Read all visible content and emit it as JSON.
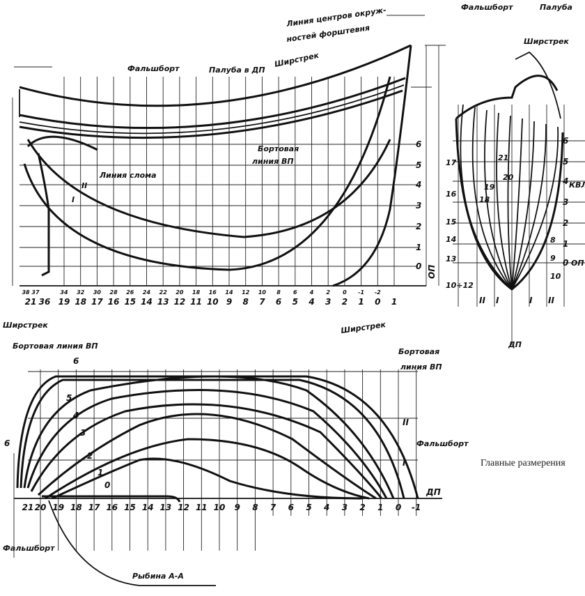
{
  "profile": {
    "labels": {
      "bulwark": "Фальшборт",
      "deck_cl": "Палуба в ДП",
      "sheer": "Ширстрек",
      "stem_line_1": "Линия центров окруж-",
      "stem_line_2": "ностей форштевня",
      "side_line_1": "Бортовая",
      "side_line_2": "линия ВП",
      "chine": "Линия слома",
      "wl2": "II",
      "wl1": "I",
      "baseline": "ОП"
    },
    "waterlines": [
      "0",
      "1",
      "2",
      "3",
      "4",
      "5",
      "6"
    ],
    "stations": [
      {
        "main": "21",
        "sup": "38 37"
      },
      {
        "main": "36",
        "sup": ""
      },
      {
        "main": "19",
        "sup": "34"
      },
      {
        "main": "18",
        "sup": "32"
      },
      {
        "main": "17",
        "sup": "30"
      },
      {
        "main": "16",
        "sup": "28"
      },
      {
        "main": "15",
        "sup": "26"
      },
      {
        "main": "14",
        "sup": "24"
      },
      {
        "main": "13",
        "sup": "22"
      },
      {
        "main": "12",
        "sup": "20"
      },
      {
        "main": "11",
        "sup": "18"
      },
      {
        "main": "10",
        "sup": "16"
      },
      {
        "main": "9",
        "sup": "14"
      },
      {
        "main": "8",
        "sup": "12"
      },
      {
        "main": "7",
        "sup": "10"
      },
      {
        "main": "6",
        "sup": "8"
      },
      {
        "main": "5",
        "sup": "6"
      },
      {
        "main": "4",
        "sup": "4"
      },
      {
        "main": "3",
        "sup": "2"
      },
      {
        "main": "2",
        "sup": "0"
      },
      {
        "main": "1",
        "sup": "-1"
      },
      {
        "main": "0",
        "sup": "-2"
      },
      {
        "main": "1",
        "sup": ""
      }
    ]
  },
  "body_plan": {
    "labels": {
      "bulwark": "Фальшборт",
      "deck": "Палуба",
      "sheer": "Ширстрек",
      "dwl": "КВЛ",
      "baseline": "ОП",
      "centerline": "ДП"
    },
    "waterlines": [
      "0",
      "1",
      "2",
      "3",
      "4",
      "5",
      "6"
    ],
    "aft_sections": [
      "17",
      "16",
      "15",
      "14",
      "13",
      "10÷12"
    ],
    "fwd_sections": [
      "8",
      "9",
      "10"
    ],
    "inner_sections": [
      "21",
      "20",
      "19",
      "18"
    ],
    "buttocks": [
      "II",
      "I",
      "I",
      "II"
    ]
  },
  "half_breadth": {
    "labels": {
      "sheer_left": "Ширстрек",
      "side_line": "Бортовая линия ВП",
      "sheer_right": "Ширстрек",
      "side_line_r1": "Бортовая",
      "side_line_r2": "линия ВП",
      "bulwark_right": "Фальшборт",
      "bulwark_left": "Фальшборт",
      "keel_section": "Рыбина А-А",
      "centerline": "ДП",
      "bt2": "II",
      "bt1": "I",
      "six_a": "6",
      "six_b": "6"
    },
    "waterline_marks": [
      "5",
      "4",
      "3",
      "2",
      "1",
      "0"
    ],
    "stations": [
      "21",
      "20",
      "19",
      "18",
      "17",
      "16",
      "15",
      "14",
      "13",
      "12",
      "11",
      "10",
      "9",
      "8",
      "7",
      "6",
      "5",
      "4",
      "3",
      "2",
      "1",
      "0",
      "-1"
    ]
  },
  "caption": "Главные размерения"
}
